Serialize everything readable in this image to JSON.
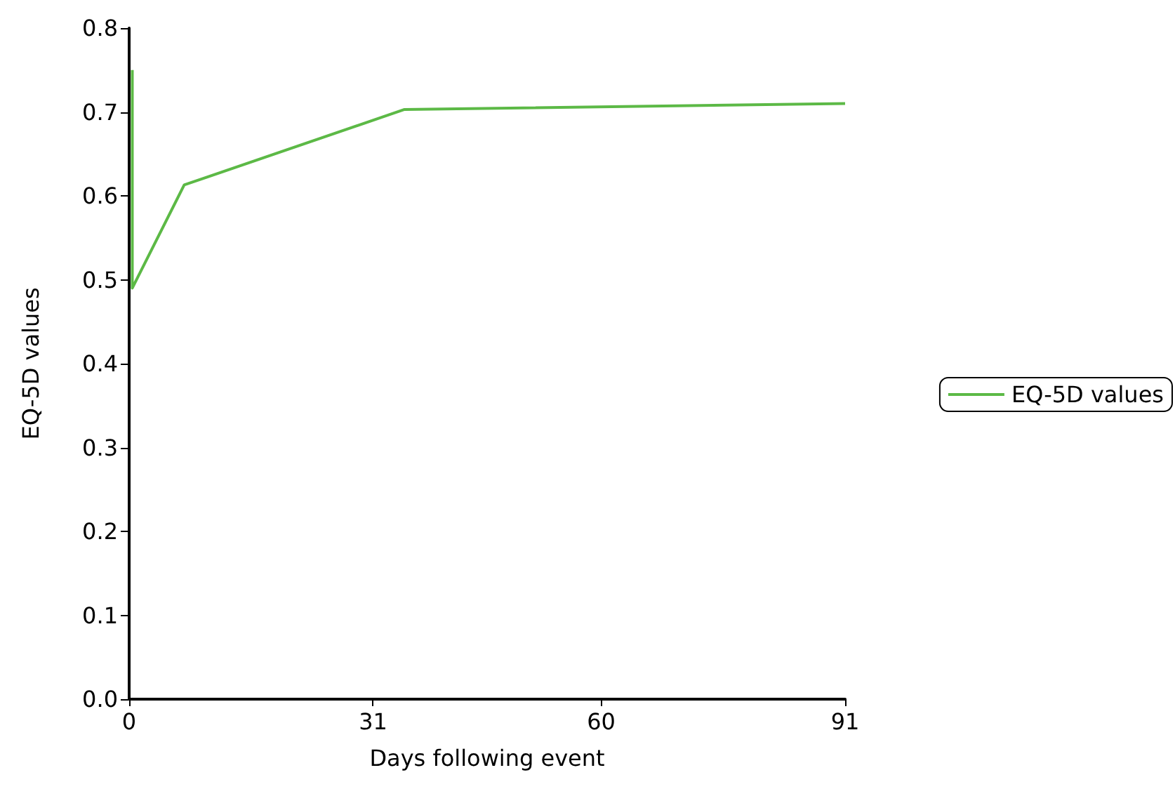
{
  "chart_data": {
    "type": "line",
    "xlabel": "Days following event",
    "ylabel": "EQ-5D values",
    "x": [
      0.4,
      0.4,
      7,
      35,
      91
    ],
    "series": [
      {
        "name": "EQ-5D values",
        "color": "#5cb946",
        "values": [
          0.75,
          0.49,
          0.613,
          0.703,
          0.71
        ]
      }
    ],
    "xlim": [
      0,
      91
    ],
    "xticks": [
      0,
      31,
      60,
      91
    ],
    "ylim": [
      0,
      0.8
    ],
    "yticks": [
      {
        "value": 0,
        "label": "0.0"
      },
      0.1,
      0.2,
      0.3,
      0.4,
      0.5,
      0.6,
      0.7,
      0.8
    ],
    "grid": false,
    "legend": "right",
    "marker": "none",
    "line_style": "solid"
  }
}
